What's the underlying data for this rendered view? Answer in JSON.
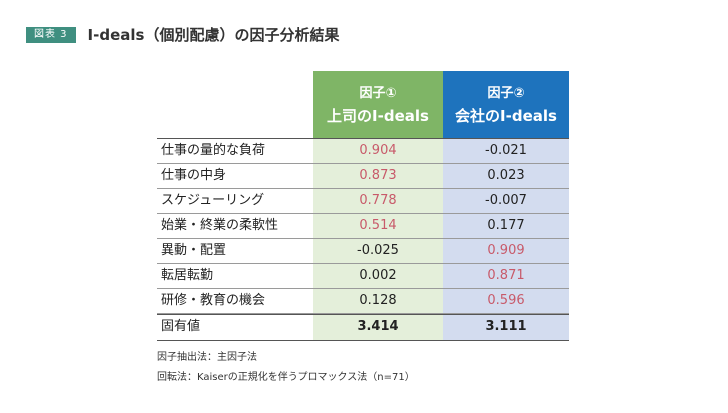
{
  "header": {
    "badge": "図表 3",
    "title": "I-deals（個別配慮）の因子分析結果"
  },
  "table": {
    "columns": [
      {
        "line1": "因子①",
        "line2": "上司のI-deals"
      },
      {
        "line1": "因子②",
        "line2": "会社のI-deals"
      }
    ],
    "rows": [
      {
        "label": "仕事の量的な負荷",
        "f1": "0.904",
        "f2": "-0.021",
        "hi1": true,
        "hi2": false
      },
      {
        "label": "仕事の中身",
        "f1": "0.873",
        "f2": "0.023",
        "hi1": true,
        "hi2": false
      },
      {
        "label": "スケジューリング",
        "f1": "0.778",
        "f2": "-0.007",
        "hi1": true,
        "hi2": false
      },
      {
        "label": "始業・終業の柔軟性",
        "f1": "0.514",
        "f2": "0.177",
        "hi1": true,
        "hi2": false
      },
      {
        "label": "異動・配置",
        "f1": "-0.025",
        "f2": "0.909",
        "hi1": false,
        "hi2": true
      },
      {
        "label": "転居転勤",
        "f1": "0.002",
        "f2": "0.871",
        "hi1": false,
        "hi2": true
      },
      {
        "label": "研修・教育の機会",
        "f1": "0.128",
        "f2": "0.596",
        "hi1": false,
        "hi2": true
      }
    ],
    "total": {
      "label": "固有値",
      "f1": "3.414",
      "f2": "3.111"
    }
  },
  "notes": [
    "因子抽出法：主因子法",
    "回転法：Kaiserの正規化を伴うプロマックス法（n=71）"
  ],
  "colors": {
    "badge": "#3f8f80",
    "factor1_header": "#7fb566",
    "factor2_header": "#1e73bd",
    "factor1_cell": "#e4efda",
    "factor2_cell": "#d3dcef",
    "highlight_text": "#c85a6a"
  }
}
